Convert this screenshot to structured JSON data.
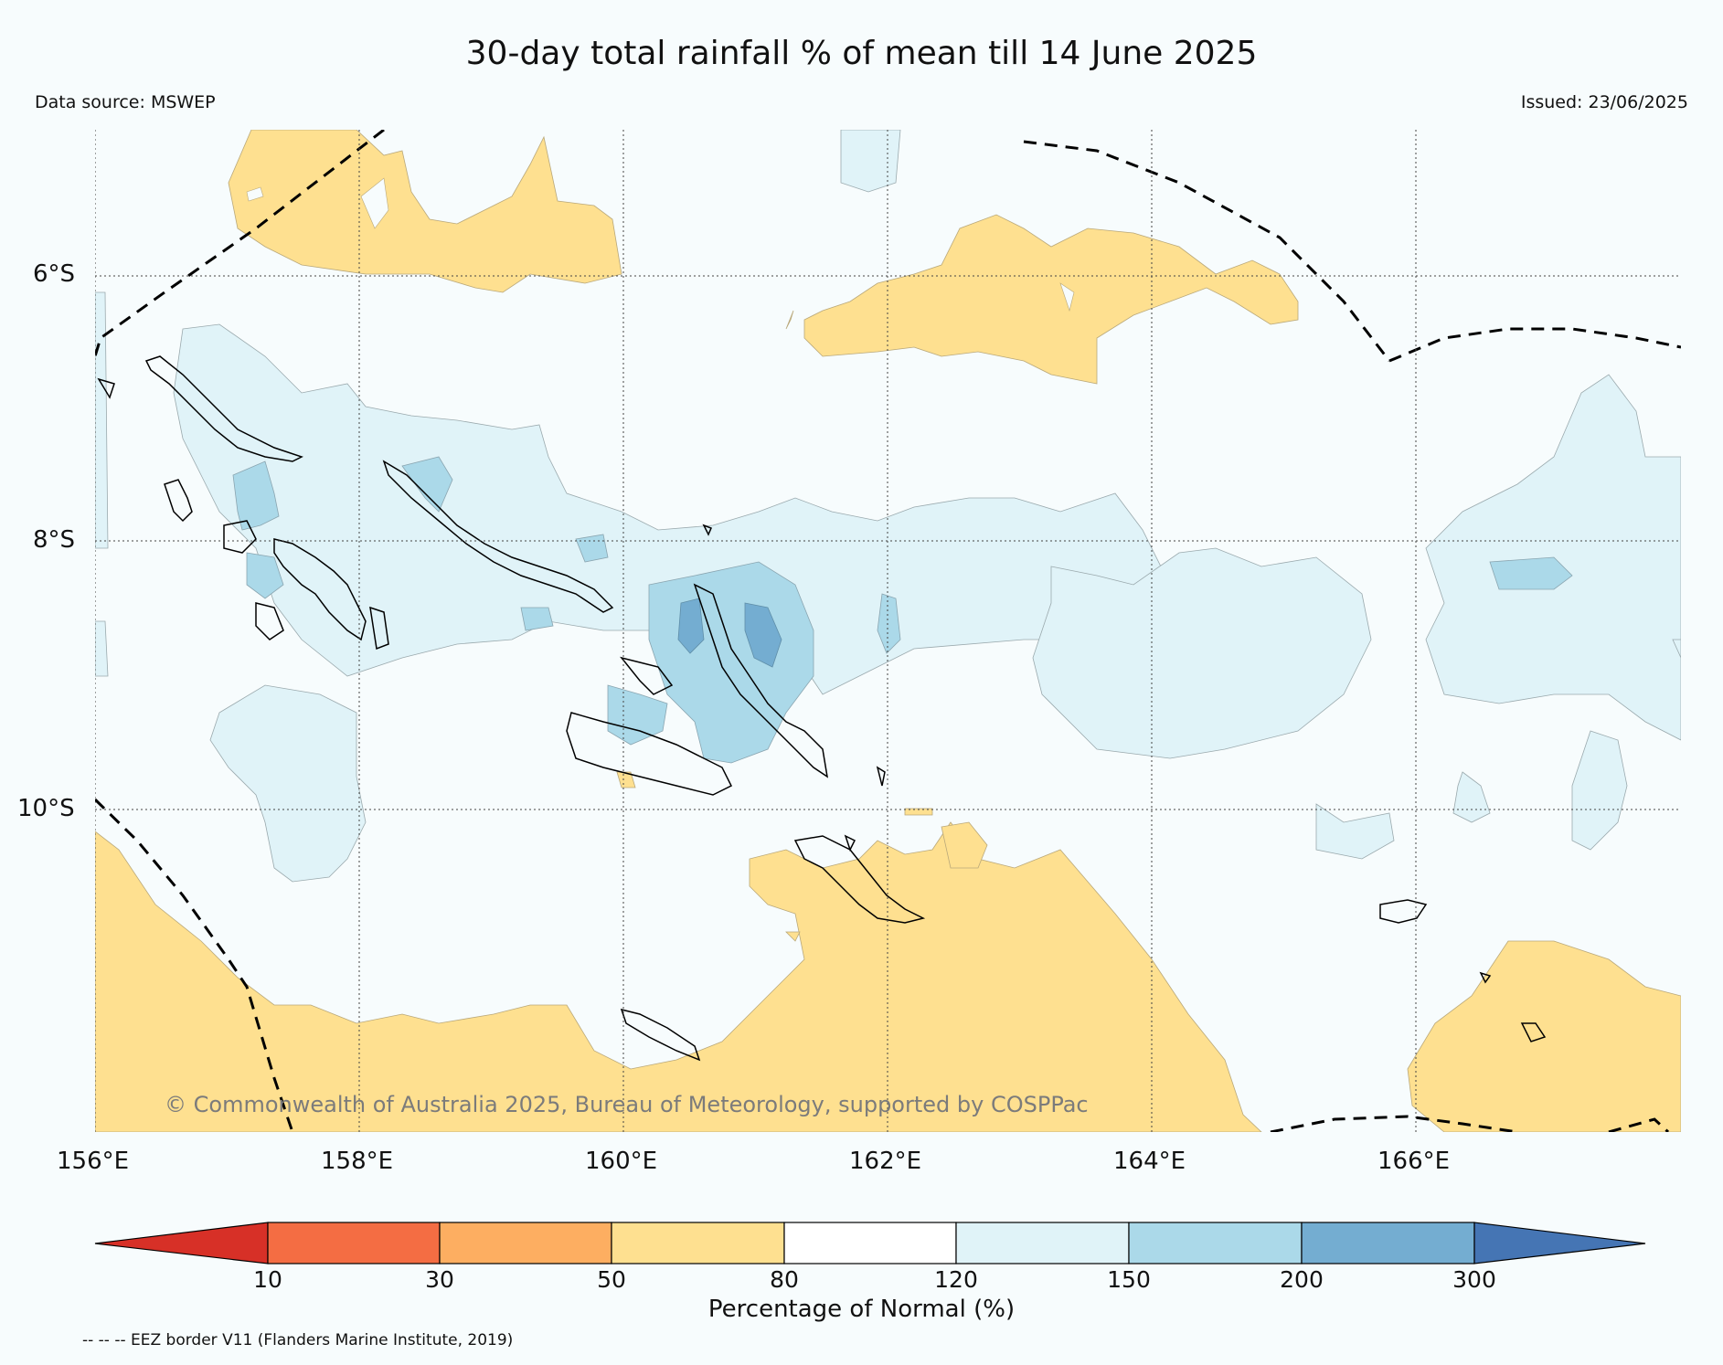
{
  "title": "30-day total rainfall % of mean till 14 June 2025",
  "data_source": "Data source: MSWEP",
  "issued": "Issued: 23/06/2025",
  "copyright": "© Commonwealth of Australia 2025, Bureau of Meteorology, supported by COSPPac",
  "map": {
    "lon_ticks": [
      "156°E",
      "158°E",
      "160°E",
      "162°E",
      "164°E",
      "166°E"
    ],
    "lat_ticks": [
      "6°S",
      "8°S",
      "10°S"
    ],
    "gridlines": "dotted"
  },
  "legend": {
    "title": "Percentage of Normal (%)",
    "boundaries": [
      "10",
      "30",
      "50",
      "80",
      "120",
      "150",
      "200",
      "300"
    ],
    "colors": [
      "#d73027",
      "#f46d43",
      "#fdae61",
      "#fee090",
      "#ffffff",
      "#e0f3f8",
      "#abd9e9",
      "#74add1",
      "#4575b4"
    ],
    "extend": "both"
  },
  "eez_note": "-- -- -- EEZ border V11 (Flanders Marine Institute, 2019)",
  "colors": {
    "background": "#f7fcfd",
    "dry": "#fee090",
    "wet_light": "#e0f3f8",
    "wet_medium": "#abd9e9",
    "wet_strong": "#74add1",
    "coastline": "#000000"
  }
}
